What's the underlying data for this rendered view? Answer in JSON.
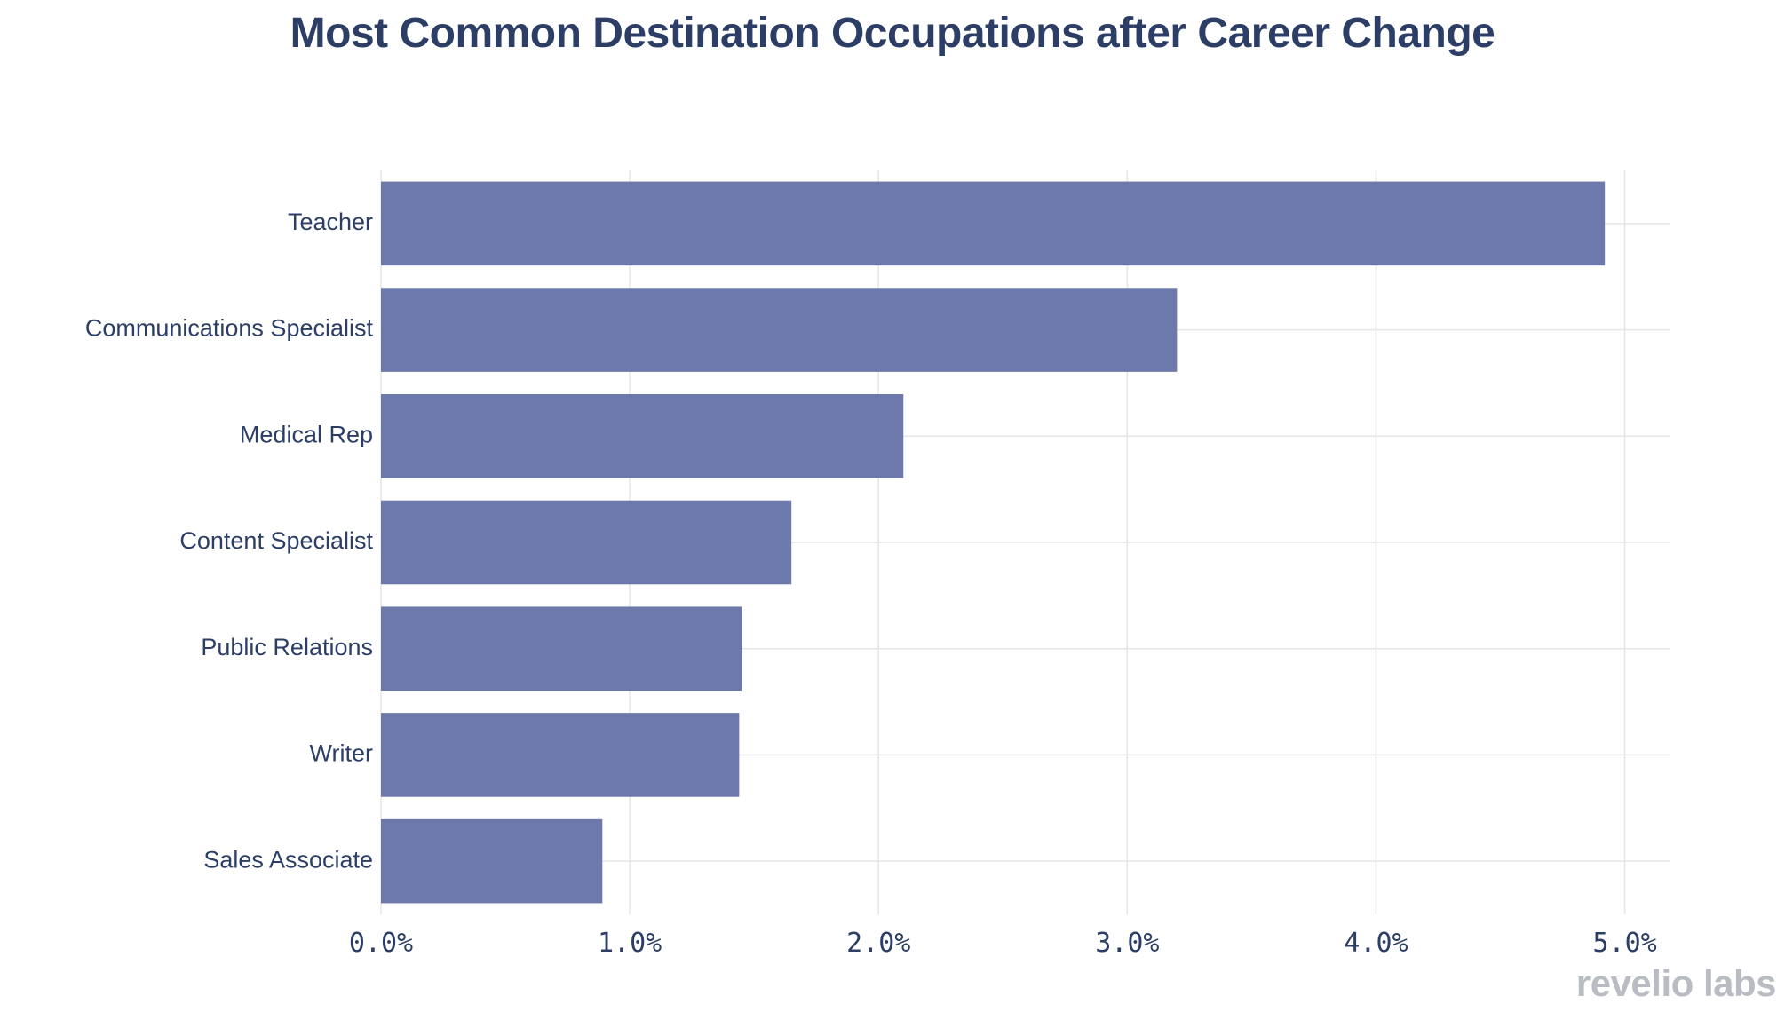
{
  "chart_data": {
    "type": "bar",
    "orientation": "horizontal",
    "title": "Most Common Destination Occupations after Career Change",
    "categories": [
      "Teacher",
      "Communications Specialist",
      "Medical Rep",
      "Content Specialist",
      "Public Relations",
      "Writer",
      "Sales Associate"
    ],
    "values": [
      4.92,
      3.2,
      2.1,
      1.65,
      1.45,
      1.44,
      0.89
    ],
    "value_unit": "%",
    "xlim": [
      0,
      5.18
    ],
    "xticks": [
      0,
      1,
      2,
      3,
      4,
      5
    ],
    "xtick_labels": [
      "0.0%",
      "1.0%",
      "2.0%",
      "3.0%",
      "4.0%",
      "5.0%"
    ],
    "grid": true,
    "bar_color": "#6d79ab",
    "grid_color": "#e6e6e6",
    "text_color": "#2c3e66"
  },
  "watermark": "revelio labs"
}
